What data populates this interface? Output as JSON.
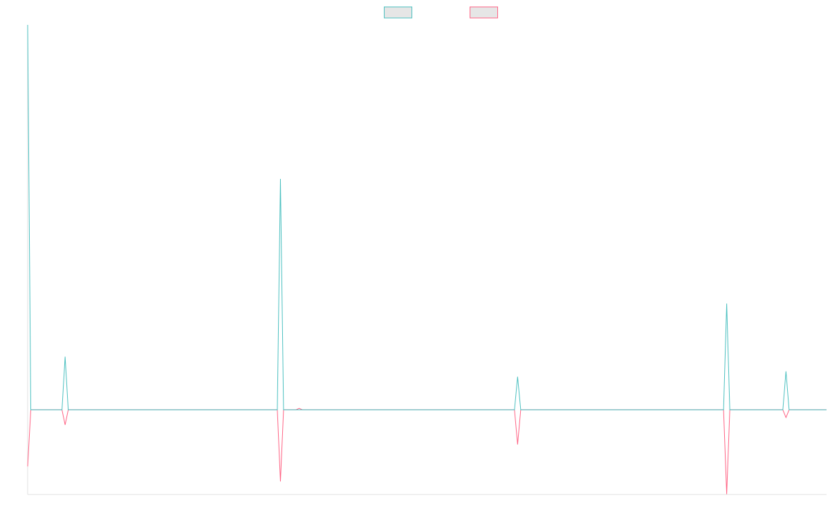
{
  "chart_data": {
    "type": "line",
    "x": [
      0,
      1,
      11,
      12,
      13,
      80,
      81,
      82,
      86,
      87,
      88,
      156,
      157,
      158,
      223,
      224,
      225,
      242,
      243,
      244,
      256
    ],
    "series": [
      {
        "color": "#4bc0c0",
        "values": [
          100,
          0,
          0,
          13.8,
          0,
          0,
          60,
          0,
          0,
          0,
          0,
          0,
          8.6,
          0,
          0,
          27.6,
          0,
          0,
          10,
          0,
          0
        ]
      },
      {
        "color": "#ff6384",
        "values": [
          -14.7,
          0,
          0,
          -3.9,
          0,
          0,
          -18.6,
          0,
          0,
          0.4,
          0,
          0,
          -9,
          0,
          0,
          -21.9,
          0,
          0,
          -2,
          0,
          0
        ]
      }
    ],
    "xlim": [
      0,
      256
    ],
    "ylim": [
      -22,
      100
    ],
    "legend": "top"
  }
}
